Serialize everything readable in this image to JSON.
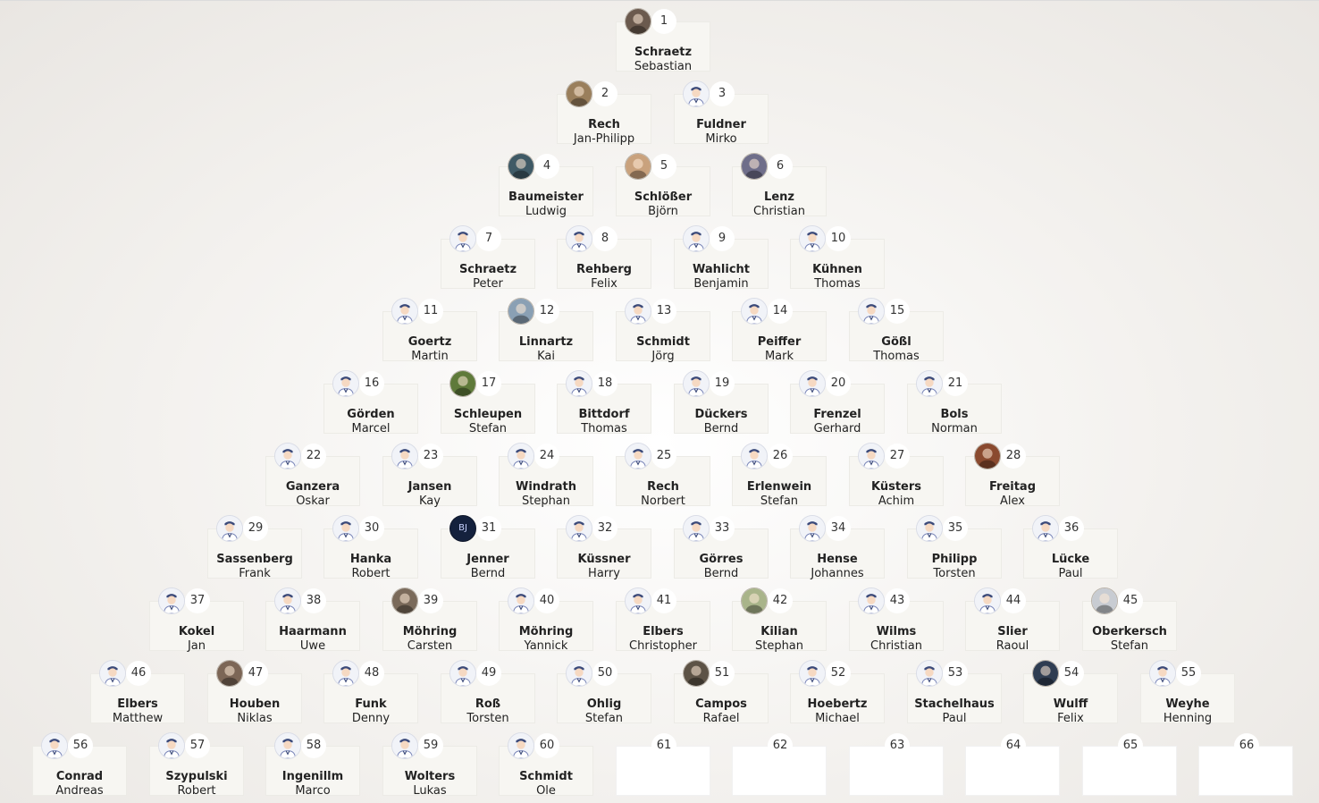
{
  "ladder": {
    "rows": [
      [
        {
          "rank": "1",
          "last": "Schraetz",
          "first": "Sebastian",
          "avatar": "photo",
          "avatar_color": "#6b5a4e"
        }
      ],
      [
        {
          "rank": "2",
          "last": "Rech",
          "first": "Jan-Philipp",
          "avatar": "photo",
          "avatar_color": "#9a7f5c"
        },
        {
          "rank": "3",
          "last": "Fuldner",
          "first": "Mirko",
          "avatar": "default"
        }
      ],
      [
        {
          "rank": "4",
          "last": "Baumeister",
          "first": "Ludwig",
          "avatar": "photo",
          "avatar_color": "#3f5a66"
        },
        {
          "rank": "5",
          "last": "Schlößer",
          "first": "Björn",
          "avatar": "photo",
          "avatar_color": "#c9a27d"
        },
        {
          "rank": "6",
          "last": "Lenz",
          "first": "Christian",
          "avatar": "photo",
          "avatar_color": "#6f6e8a"
        }
      ],
      [
        {
          "rank": "7",
          "last": "Schraetz",
          "first": "Peter",
          "avatar": "default"
        },
        {
          "rank": "8",
          "last": "Rehberg",
          "first": "Felix",
          "avatar": "default"
        },
        {
          "rank": "9",
          "last": "Wahlicht",
          "first": "Benjamin",
          "avatar": "default"
        },
        {
          "rank": "10",
          "last": "Kühnen",
          "first": "Thomas",
          "avatar": "default"
        }
      ],
      [
        {
          "rank": "11",
          "last": "Goertz",
          "first": "Martin",
          "avatar": "default"
        },
        {
          "rank": "12",
          "last": "Linnartz",
          "first": "Kai",
          "avatar": "photo",
          "avatar_color": "#8aa0b4"
        },
        {
          "rank": "13",
          "last": "Schmidt",
          "first": "Jörg",
          "avatar": "default"
        },
        {
          "rank": "14",
          "last": "Peiffer",
          "first": "Mark",
          "avatar": "default"
        },
        {
          "rank": "15",
          "last": "Gößl",
          "first": "Thomas",
          "avatar": "default"
        }
      ],
      [
        {
          "rank": "16",
          "last": "Görden",
          "first": "Marcel",
          "avatar": "default"
        },
        {
          "rank": "17",
          "last": "Schleupen",
          "first": "Stefan",
          "avatar": "photo",
          "avatar_color": "#5f7a3a"
        },
        {
          "rank": "18",
          "last": "Bittdorf",
          "first": "Thomas",
          "avatar": "default"
        },
        {
          "rank": "19",
          "last": "Dückers",
          "first": "Bernd",
          "avatar": "default"
        },
        {
          "rank": "20",
          "last": "Frenzel",
          "first": "Gerhard",
          "avatar": "default"
        },
        {
          "rank": "21",
          "last": "Bols",
          "first": "Norman",
          "avatar": "default"
        }
      ],
      [
        {
          "rank": "22",
          "last": "Ganzera",
          "first": "Oskar",
          "avatar": "default"
        },
        {
          "rank": "23",
          "last": "Jansen",
          "first": "Kay",
          "avatar": "default"
        },
        {
          "rank": "24",
          "last": "Windrath",
          "first": "Stephan",
          "avatar": "default"
        },
        {
          "rank": "25",
          "last": "Rech",
          "first": "Norbert",
          "avatar": "default"
        },
        {
          "rank": "26",
          "last": "Erlenwein",
          "first": "Stefan",
          "avatar": "default"
        },
        {
          "rank": "27",
          "last": "Küsters",
          "first": "Achim",
          "avatar": "default"
        },
        {
          "rank": "28",
          "last": "Freitag",
          "first": "Alex",
          "avatar": "photo",
          "avatar_color": "#8a4a2f"
        }
      ],
      [
        {
          "rank": "29",
          "last": "Sassenberg",
          "first": "Frank",
          "avatar": "default"
        },
        {
          "rank": "30",
          "last": "Hanka",
          "first": "Robert",
          "avatar": "default"
        },
        {
          "rank": "31",
          "last": "Jenner",
          "first": "Bernd",
          "avatar": "initials",
          "initials": "BJ"
        },
        {
          "rank": "32",
          "last": "Küssner",
          "first": "Harry",
          "avatar": "default"
        },
        {
          "rank": "33",
          "last": "Görres",
          "first": "Bernd",
          "avatar": "default"
        },
        {
          "rank": "34",
          "last": "Hense",
          "first": "Johannes",
          "avatar": "default"
        },
        {
          "rank": "35",
          "last": "Philipp",
          "first": "Torsten",
          "avatar": "default"
        },
        {
          "rank": "36",
          "last": "Lücke",
          "first": "Paul",
          "avatar": "default"
        }
      ],
      [
        {
          "rank": "37",
          "last": "Kokel",
          "first": "Jan",
          "avatar": "default"
        },
        {
          "rank": "38",
          "last": "Haarmann",
          "first": "Uwe",
          "avatar": "default"
        },
        {
          "rank": "39",
          "last": "Möhring",
          "first": "Carsten",
          "avatar": "photo",
          "avatar_color": "#7a6a5a"
        },
        {
          "rank": "40",
          "last": "Möhring",
          "first": "Yannick",
          "avatar": "default"
        },
        {
          "rank": "41",
          "last": "Elbers",
          "first": "Christopher",
          "avatar": "default"
        },
        {
          "rank": "42",
          "last": "Kilian",
          "first": "Stephan",
          "avatar": "photo",
          "avatar_color": "#a9b48a"
        },
        {
          "rank": "43",
          "last": "Wilms",
          "first": "Christian",
          "avatar": "default"
        },
        {
          "rank": "44",
          "last": "Slier",
          "first": "Raoul",
          "avatar": "default"
        },
        {
          "rank": "45",
          "last": "Oberkersch",
          "first": "Stefan",
          "avatar": "photo",
          "avatar_color": "#c8ccd2"
        }
      ],
      [
        {
          "rank": "46",
          "last": "Elbers",
          "first": "Matthew",
          "avatar": "default"
        },
        {
          "rank": "47",
          "last": "Houben",
          "first": "Niklas",
          "avatar": "photo",
          "avatar_color": "#7c6656"
        },
        {
          "rank": "48",
          "last": "Funk",
          "first": "Denny",
          "avatar": "default"
        },
        {
          "rank": "49",
          "last": "Roß",
          "first": "Torsten",
          "avatar": "default"
        },
        {
          "rank": "50",
          "last": "Ohlig",
          "first": "Stefan",
          "avatar": "default"
        },
        {
          "rank": "51",
          "last": "Campos",
          "first": "Rafael",
          "avatar": "photo",
          "avatar_color": "#5d5346"
        },
        {
          "rank": "52",
          "last": "Hoebertz",
          "first": "Michael",
          "avatar": "default"
        },
        {
          "rank": "53",
          "last": "Stachelhaus",
          "first": "Paul",
          "avatar": "default"
        },
        {
          "rank": "54",
          "last": "Wulff",
          "first": "Felix",
          "avatar": "photo",
          "avatar_color": "#2f3d52"
        },
        {
          "rank": "55",
          "last": "Weyhe",
          "first": "Henning",
          "avatar": "default"
        }
      ],
      [
        {
          "rank": "56",
          "last": "Conrad",
          "first": "Andreas",
          "avatar": "default"
        },
        {
          "rank": "57",
          "last": "Szypulski",
          "first": "Robert",
          "avatar": "default"
        },
        {
          "rank": "58",
          "last": "Ingenillm",
          "first": "Marco",
          "avatar": "default"
        },
        {
          "rank": "59",
          "last": "Wolters",
          "first": "Lukas",
          "avatar": "default"
        },
        {
          "rank": "60",
          "last": "Schmidt",
          "first": "Ole",
          "avatar": "default"
        },
        {
          "rank": "61",
          "last": "",
          "first": "",
          "avatar": "none"
        },
        {
          "rank": "62",
          "last": "",
          "first": "",
          "avatar": "none"
        },
        {
          "rank": "63",
          "last": "",
          "first": "",
          "avatar": "none"
        },
        {
          "rank": "64",
          "last": "",
          "first": "",
          "avatar": "none"
        },
        {
          "rank": "65",
          "last": "",
          "first": "",
          "avatar": "none"
        },
        {
          "rank": "66",
          "last": "",
          "first": "",
          "avatar": "none"
        }
      ]
    ]
  }
}
